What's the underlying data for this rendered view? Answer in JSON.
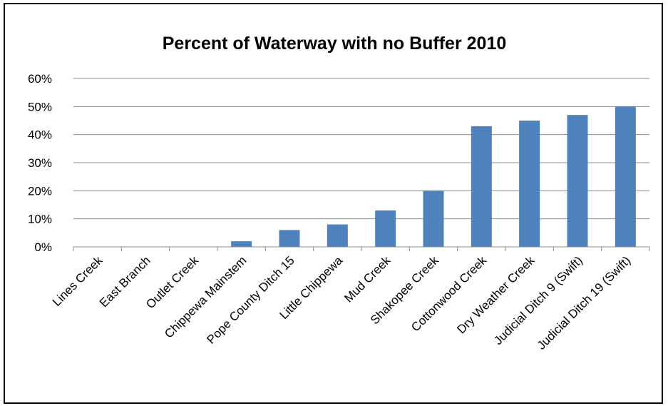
{
  "chart_data": {
    "type": "bar",
    "title": "Percent of Waterway with no Buffer 2010",
    "xlabel": "",
    "ylabel": "",
    "ylim": [
      0,
      60
    ],
    "yticks": [
      "0%",
      "10%",
      "20%",
      "30%",
      "40%",
      "50%",
      "60%"
    ],
    "grid": true,
    "legend": "none",
    "bar_color": "#4f81bd",
    "categories": [
      "Lines Creek",
      "East Branch",
      "Outlet Creek",
      "Chippewa Mainstem",
      "Pope County Ditch 15",
      "Little Chippewa",
      "Mud Creek",
      "Shakopee Creek",
      "Cottonwood Creek",
      "Dry Weather Creek",
      "Judicial Ditch 9 (Swift)",
      "Judicial Ditch 19 (Swift)"
    ],
    "values": [
      0,
      0,
      0,
      2,
      6,
      8,
      13,
      20,
      43,
      45,
      47,
      50
    ]
  }
}
